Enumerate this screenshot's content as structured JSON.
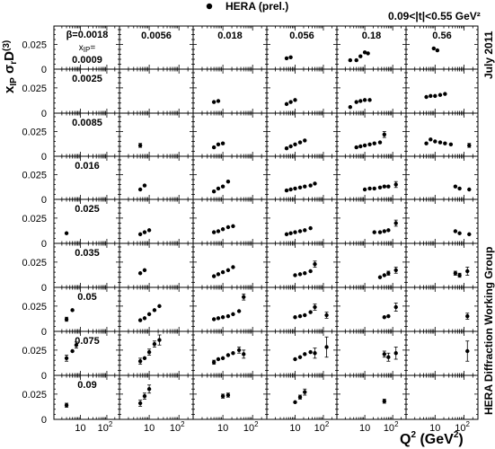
{
  "chart_data": {
    "type": "scatter",
    "title": "",
    "legend": {
      "label": "HERA (prel.)",
      "placement": "top-center"
    },
    "t_range_label": "0.09<|t|<0.55 GeV²",
    "date_label": "July 2011",
    "group_label": "HERA Diffraction Working Group",
    "ylabel": "x_IP σ_r^D(3)",
    "xlabel": "Q² (GeV²)",
    "xscale": "log",
    "xlim": [
      1,
      300
    ],
    "ylim": [
      0,
      0.04
    ],
    "beta_label": "β=0.0018",
    "xip_label": "x_IP=",
    "ytick_labels": [
      "0",
      "0.025"
    ],
    "xtick_labels": [
      "10",
      "10²"
    ],
    "betas": [
      "0.0018",
      "0.0056",
      "0.018",
      "0.056",
      "0.18",
      "0.56"
    ],
    "xips": [
      "0.0009",
      "0.0025",
      "0.0085",
      "0.016",
      "0.025",
      "0.035",
      "0.05",
      "0.075",
      "0.09"
    ],
    "panels": [
      {
        "row": 0,
        "col": 1,
        "points": []
      },
      {
        "row": 0,
        "col": 2,
        "points": []
      },
      {
        "row": 0,
        "col": 3,
        "points": [
          [
            5,
            0.011,
            0
          ],
          [
            7,
            0.012,
            0
          ]
        ]
      },
      {
        "row": 0,
        "col": 4,
        "points": [
          [
            3,
            0.009,
            0
          ],
          [
            5,
            0.009,
            0
          ],
          [
            7,
            0.013,
            0
          ],
          [
            10,
            0.017,
            0
          ],
          [
            13,
            0.016,
            0
          ]
        ]
      },
      {
        "row": 0,
        "col": 5,
        "points": [
          [
            9,
            0.021,
            0
          ],
          [
            12,
            0.019,
            0
          ]
        ]
      },
      {
        "row": 1,
        "col": 1,
        "points": []
      },
      {
        "row": 1,
        "col": 2,
        "points": [
          [
            5,
            0.011,
            0
          ],
          [
            7,
            0.012,
            0
          ]
        ]
      },
      {
        "row": 1,
        "col": 3,
        "points": [
          [
            5,
            0.009,
            0
          ],
          [
            7,
            0.011,
            0
          ],
          [
            10,
            0.013,
            0
          ]
        ]
      },
      {
        "row": 1,
        "col": 4,
        "points": [
          [
            3,
            0.006,
            0
          ],
          [
            5,
            0.011,
            0
          ],
          [
            7,
            0.012,
            0
          ],
          [
            10,
            0.013,
            0
          ],
          [
            15,
            0.013,
            0
          ]
        ]
      },
      {
        "row": 1,
        "col": 5,
        "points": [
          [
            5,
            0.016,
            0
          ],
          [
            7,
            0.017,
            0
          ],
          [
            10,
            0.017,
            0
          ],
          [
            15,
            0.018,
            0
          ],
          [
            22,
            0.019,
            0
          ]
        ]
      },
      {
        "row": 2,
        "col": 1,
        "points": [
          [
            5,
            0.011,
            0.002
          ]
        ]
      },
      {
        "row": 2,
        "col": 2,
        "points": [
          [
            5,
            0.009,
            0
          ],
          [
            7,
            0.012,
            0
          ],
          [
            10,
            0.013,
            0
          ]
        ]
      },
      {
        "row": 2,
        "col": 3,
        "points": [
          [
            5,
            0.008,
            0
          ],
          [
            7,
            0.01,
            0
          ],
          [
            10,
            0.012,
            0
          ],
          [
            15,
            0.014,
            0
          ],
          [
            22,
            0.016,
            0
          ]
        ]
      },
      {
        "row": 2,
        "col": 4,
        "points": [
          [
            5,
            0.009,
            0
          ],
          [
            7,
            0.01,
            0
          ],
          [
            10,
            0.011,
            0
          ],
          [
            15,
            0.012,
            0
          ],
          [
            22,
            0.013,
            0
          ],
          [
            35,
            0.014,
            0
          ],
          [
            50,
            0.022,
            0.003
          ]
        ]
      },
      {
        "row": 2,
        "col": 5,
        "points": [
          [
            5,
            0.013,
            0
          ],
          [
            7,
            0.017,
            0
          ],
          [
            10,
            0.015,
            0
          ],
          [
            15,
            0.014,
            0
          ],
          [
            22,
            0.013,
            0
          ],
          [
            35,
            0.012,
            0
          ],
          [
            150,
            0.011,
            0.002
          ]
        ]
      },
      {
        "row": 3,
        "col": 1,
        "points": [
          [
            5,
            0.01,
            0
          ],
          [
            7,
            0.014,
            0
          ]
        ]
      },
      {
        "row": 3,
        "col": 2,
        "points": [
          [
            5,
            0.008,
            0
          ],
          [
            7,
            0.011,
            0
          ],
          [
            10,
            0.013,
            0
          ],
          [
            15,
            0.018,
            0
          ]
        ]
      },
      {
        "row": 3,
        "col": 3,
        "points": [
          [
            5,
            0.009,
            0
          ],
          [
            7,
            0.01,
            0
          ],
          [
            10,
            0.011,
            0
          ],
          [
            15,
            0.012,
            0
          ],
          [
            22,
            0.013,
            0
          ],
          [
            35,
            0.014,
            0
          ],
          [
            50,
            0.016,
            0
          ]
        ]
      },
      {
        "row": 3,
        "col": 4,
        "points": [
          [
            10,
            0.01,
            0
          ],
          [
            15,
            0.011,
            0
          ],
          [
            22,
            0.011,
            0
          ],
          [
            35,
            0.012,
            0
          ],
          [
            50,
            0.013,
            0
          ],
          [
            70,
            0.013,
            0
          ],
          [
            130,
            0.015,
            0.003
          ]
        ]
      },
      {
        "row": 3,
        "col": 5,
        "points": [
          [
            50,
            0.013,
            0
          ],
          [
            70,
            0.011,
            0
          ],
          [
            150,
            0.01,
            0
          ]
        ]
      },
      {
        "row": 4,
        "col": 0,
        "points": [
          [
            3,
            0.01,
            0
          ]
        ]
      },
      {
        "row": 4,
        "col": 1,
        "points": [
          [
            5,
            0.009,
            0
          ],
          [
            7,
            0.011,
            0
          ],
          [
            10,
            0.013,
            0
          ]
        ]
      },
      {
        "row": 4,
        "col": 2,
        "points": [
          [
            5,
            0.011,
            0
          ],
          [
            7,
            0.012,
            0
          ],
          [
            10,
            0.014,
            0
          ],
          [
            15,
            0.016,
            0
          ],
          [
            22,
            0.017,
            0
          ]
        ]
      },
      {
        "row": 4,
        "col": 3,
        "points": [
          [
            5,
            0.009,
            0
          ],
          [
            7,
            0.01,
            0
          ],
          [
            10,
            0.011,
            0
          ],
          [
            15,
            0.012,
            0
          ],
          [
            22,
            0.013,
            0
          ],
          [
            35,
            0.015,
            0
          ]
        ]
      },
      {
        "row": 4,
        "col": 4,
        "points": [
          [
            22,
            0.011,
            0
          ],
          [
            35,
            0.011,
            0
          ],
          [
            50,
            0.012,
            0
          ],
          [
            70,
            0.013,
            0
          ],
          [
            130,
            0.02,
            0.003
          ]
        ]
      },
      {
        "row": 4,
        "col": 5,
        "points": [
          [
            50,
            0.012,
            0
          ],
          [
            70,
            0.01,
            0
          ],
          [
            150,
            0.009,
            0
          ]
        ]
      },
      {
        "row": 5,
        "col": 1,
        "points": [
          [
            5,
            0.014,
            0
          ],
          [
            7,
            0.017,
            0
          ]
        ]
      },
      {
        "row": 5,
        "col": 2,
        "points": [
          [
            5,
            0.011,
            0
          ],
          [
            7,
            0.013,
            0
          ],
          [
            10,
            0.015,
            0
          ],
          [
            15,
            0.017,
            0
          ],
          [
            22,
            0.02,
            0
          ]
        ]
      },
      {
        "row": 5,
        "col": 3,
        "points": [
          [
            10,
            0.012,
            0
          ],
          [
            15,
            0.013,
            0
          ],
          [
            22,
            0.014,
            0
          ],
          [
            35,
            0.016,
            0
          ],
          [
            50,
            0.023,
            0.003
          ]
        ]
      },
      {
        "row": 5,
        "col": 4,
        "points": [
          [
            35,
            0.01,
            0
          ],
          [
            50,
            0.012,
            0
          ],
          [
            70,
            0.014,
            0.002
          ],
          [
            130,
            0.017,
            0.003
          ]
        ]
      },
      {
        "row": 5,
        "col": 5,
        "points": [
          [
            50,
            0.014,
            0.002
          ],
          [
            70,
            0.012,
            0.002
          ],
          [
            130,
            0.016,
            0.004
          ]
        ]
      },
      {
        "row": 6,
        "col": 0,
        "points": [
          [
            3,
            0.012,
            0.002
          ],
          [
            5,
            0.021,
            0
          ]
        ]
      },
      {
        "row": 6,
        "col": 1,
        "points": [
          [
            5,
            0.011,
            0
          ],
          [
            7,
            0.013,
            0
          ],
          [
            10,
            0.017,
            0
          ],
          [
            15,
            0.021,
            0
          ],
          [
            22,
            0.025,
            0
          ]
        ]
      },
      {
        "row": 6,
        "col": 2,
        "points": [
          [
            5,
            0.012,
            0
          ],
          [
            7,
            0.013,
            0
          ],
          [
            10,
            0.014,
            0
          ],
          [
            15,
            0.015,
            0
          ],
          [
            22,
            0.017,
            0
          ],
          [
            35,
            0.02,
            0
          ],
          [
            50,
            0.034,
            0.003
          ]
        ]
      },
      {
        "row": 6,
        "col": 3,
        "points": [
          [
            10,
            0.014,
            0
          ],
          [
            15,
            0.015,
            0
          ],
          [
            22,
            0.016,
            0
          ],
          [
            35,
            0.019,
            0
          ],
          [
            50,
            0.024,
            0.003
          ],
          [
            130,
            0.016,
            0.003
          ]
        ]
      },
      {
        "row": 6,
        "col": 4,
        "points": [
          [
            50,
            0.014,
            0
          ],
          [
            70,
            0.015,
            0
          ],
          [
            130,
            0.024,
            0.004
          ]
        ]
      },
      {
        "row": 6,
        "col": 5,
        "points": [
          [
            130,
            0.015,
            0.003
          ]
        ]
      },
      {
        "row": 7,
        "col": 0,
        "points": [
          [
            3,
            0.017,
            0.003
          ],
          [
            5,
            0.024,
            0
          ],
          [
            7,
            0.03,
            0.003
          ]
        ]
      },
      {
        "row": 7,
        "col": 1,
        "points": [
          [
            5,
            0.014,
            0.003
          ],
          [
            7,
            0.017,
            0
          ],
          [
            10,
            0.023,
            0.003
          ],
          [
            15,
            0.031,
            0.003
          ],
          [
            22,
            0.035,
            0.005
          ]
        ]
      },
      {
        "row": 7,
        "col": 2,
        "points": [
          [
            5,
            0.013,
            0.002
          ],
          [
            7,
            0.016,
            0
          ],
          [
            10,
            0.017,
            0
          ],
          [
            15,
            0.02,
            0
          ],
          [
            22,
            0.022,
            0
          ],
          [
            35,
            0.025,
            0.003
          ],
          [
            50,
            0.021,
            0.004
          ]
        ]
      },
      {
        "row": 7,
        "col": 3,
        "points": [
          [
            10,
            0.016,
            0
          ],
          [
            15,
            0.018,
            0
          ],
          [
            22,
            0.021,
            0
          ],
          [
            35,
            0.023,
            0
          ],
          [
            50,
            0.022,
            0.005
          ],
          [
            130,
            0.028,
            0.01
          ]
        ]
      },
      {
        "row": 7,
        "col": 4,
        "points": [
          [
            50,
            0.021,
            0.003
          ],
          [
            70,
            0.018,
            0.004
          ],
          [
            130,
            0.022,
            0.006
          ]
        ]
      },
      {
        "row": 7,
        "col": 5,
        "points": [
          [
            130,
            0.024,
            0.01
          ]
        ]
      },
      {
        "row": 8,
        "col": 0,
        "points": [
          [
            3,
            0.014,
            0.002
          ]
        ]
      },
      {
        "row": 8,
        "col": 1,
        "points": [
          [
            5,
            0.016,
            0.003
          ],
          [
            7,
            0.023,
            0.003
          ],
          [
            10,
            0.03,
            0.004
          ]
        ]
      },
      {
        "row": 8,
        "col": 2,
        "points": [
          [
            10,
            0.023,
            0.002
          ],
          [
            15,
            0.024,
            0.002
          ]
        ]
      },
      {
        "row": 8,
        "col": 3,
        "points": [
          [
            10,
            0.017,
            0
          ],
          [
            15,
            0.022,
            0.002
          ],
          [
            22,
            0.027,
            0.003
          ]
        ]
      },
      {
        "row": 8,
        "col": 4,
        "points": [
          [
            50,
            0.018,
            0.002
          ]
        ]
      },
      {
        "row": 8,
        "col": 5,
        "points": []
      }
    ]
  }
}
